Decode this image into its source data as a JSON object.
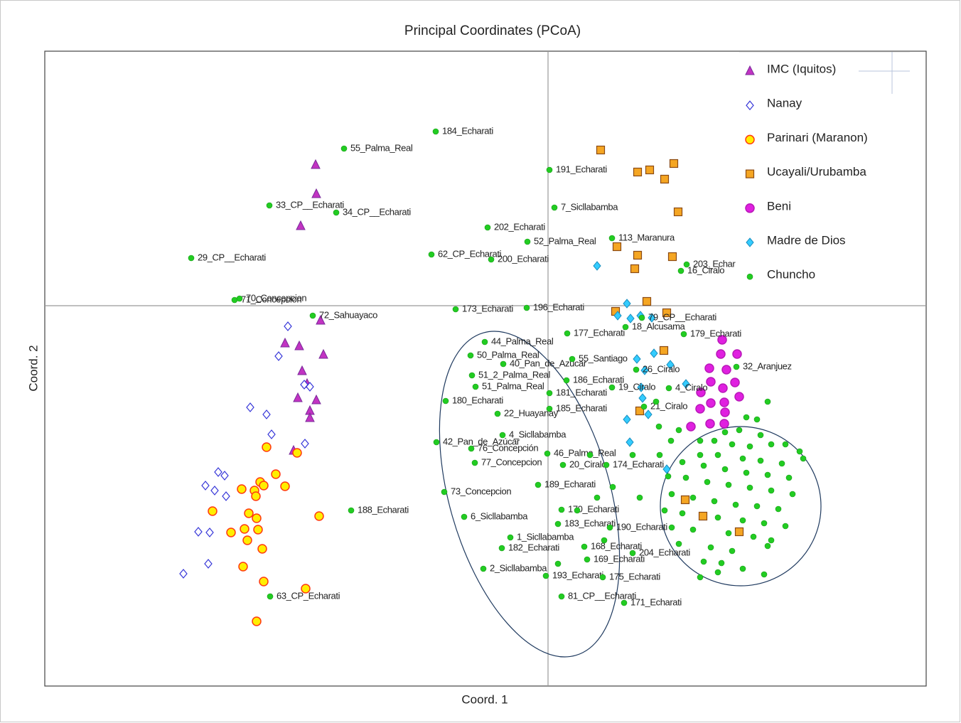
{
  "chart_data": {
    "type": "scatter",
    "title": "Principal Coordinates (PCoA)",
    "xlabel": "Coord. 1",
    "ylabel": "Coord. 2",
    "xlim": [
      -708,
      532
    ],
    "ylim": [
      -535,
      358
    ],
    "legend": "upper right",
    "series": [
      {
        "name": "IMC (Iquitos)",
        "marker": "triangle",
        "color": "#c233c2",
        "edgecolor": "#7a2a9a",
        "x": [
          -327,
          -326,
          -348,
          -320,
          -370,
          -350,
          -316,
          -346,
          -339,
          -352,
          -326,
          -335,
          -335,
          -358
        ],
        "values": [
          198,
          157,
          112,
          -21,
          -53,
          -57,
          -69,
          -92,
          -110,
          -130,
          -133,
          -148,
          -158,
          -204
        ]
      },
      {
        "name": "Nanay",
        "marker": "open-diamond",
        "color": "#ffffff",
        "edgecolor": "#3535d8",
        "x": [
          -366,
          -379,
          -343,
          -335,
          -419,
          -396,
          -389,
          -342,
          -464,
          -455,
          -482,
          -469,
          -453,
          -492,
          -476,
          -478,
          -513
        ],
        "values": [
          -29,
          -71,
          -111,
          -114,
          -143,
          -153,
          -181,
          -194,
          -234,
          -239,
          -253,
          -260,
          -268,
          -318,
          -319,
          -363,
          -377
        ]
      },
      {
        "name": "Parinari  (Maranon)",
        "marker": "circle",
        "color": "#ffee00",
        "edgecolor": "#ff3a10",
        "x": [
          -396,
          -353,
          -383,
          -405,
          -400,
          -431,
          -370,
          -413,
          -411,
          -472,
          -421,
          -322,
          -410,
          -446,
          -427,
          -408,
          -423,
          -402,
          -429,
          -400,
          -341,
          -410
        ],
        "values": [
          -199,
          -207,
          -237,
          -248,
          -253,
          -258,
          -254,
          -260,
          -268,
          -289,
          -292,
          -296,
          -299,
          -319,
          -314,
          -315,
          -330,
          -342,
          -367,
          -388,
          -398,
          -444
        ]
      },
      {
        "name": "Ucayali/Urubamba",
        "marker": "square",
        "color": "#f5a623",
        "edgecolor": "#8b4a13",
        "x": [
          74,
          126,
          143,
          177,
          164,
          183,
          97,
          126,
          175,
          122,
          139,
          95,
          167,
          163,
          129,
          193,
          218,
          269
        ],
        "values": [
          219,
          188,
          191,
          200,
          178,
          132,
          83,
          71,
          69,
          52,
          6,
          -8,
          -10,
          -63,
          -148,
          -273,
          -296,
          -318
        ]
      },
      {
        "name": "Beni",
        "marker": "circle",
        "color": "#e020e0",
        "edgecolor": "#b818b8",
        "x": [
          245,
          266,
          243,
          227,
          251,
          229,
          263,
          246,
          215,
          269,
          229,
          248,
          214,
          249,
          201,
          228,
          248
        ],
        "values": [
          -48,
          -68,
          -68,
          -88,
          -90,
          -107,
          -108,
          -116,
          -122,
          -128,
          -137,
          -136,
          -145,
          -150,
          -170,
          -166,
          -166
        ]
      },
      {
        "name": "Madre de Dios",
        "marker": "diamond",
        "color": "#33ccff",
        "edgecolor": "#1a8fc0",
        "x": [
          69,
          111,
          98,
          116,
          130,
          146,
          125,
          149,
          172,
          136,
          194,
          131,
          133,
          141,
          111,
          115,
          167
        ],
        "values": [
          56,
          3,
          -14,
          -18,
          -14,
          -17,
          -75,
          -67,
          -83,
          -91,
          -110,
          -115,
          -130,
          -153,
          -160,
          -192,
          -230
        ]
      },
      {
        "name": "Chuncho",
        "marker": "dot",
        "color": "#22cc22",
        "edgecolor": "#1a9a1a",
        "x": [
          -158,
          -287,
          2,
          -392,
          -298,
          9,
          -85,
          -29,
          90,
          -502,
          -164,
          -80,
          195,
          187,
          -441,
          -434,
          -331,
          -130,
          -30,
          132,
          27,
          109,
          191,
          -89,
          -109,
          -63,
          34,
          265,
          -107,
          26,
          124,
          -102,
          2,
          90,
          170,
          -144,
          2,
          135,
          -71,
          -157,
          -64,
          -108,
          -1,
          -103,
          21,
          82,
          -14,
          -146,
          -277,
          19,
          -118,
          14,
          87,
          -53,
          -65,
          51,
          119,
          55,
          -91,
          -3,
          77,
          -391,
          107,
          19,
          249,
          269,
          299,
          234,
          259,
          284,
          314,
          354,
          214,
          239,
          274,
          299,
          329,
          359,
          189,
          219,
          249,
          279,
          309,
          339,
          169,
          194,
          224,
          254,
          284,
          314,
          344,
          174,
          204,
          234,
          264,
          294,
          324,
          164,
          189,
          239,
          274,
          304,
          334,
          174,
          204,
          254,
          289,
          314,
          184,
          229,
          259,
          309,
          219,
          244,
          274,
          304,
          214,
          239,
          334,
          294,
          309,
          279,
          156,
          173,
          157,
          184,
          214,
          59,
          69,
          129,
          79,
          14,
          41,
          91,
          119,
          152
        ],
        "values": [
          245,
          221,
          191,
          141,
          131,
          138,
          110,
          90,
          95,
          67,
          72,
          65,
          58,
          49,
          8,
          10,
          -14,
          -5,
          -3,
          -17,
          -39,
          -30,
          -40,
          -51,
          -70,
          -82,
          -75,
          -86,
          -98,
          -105,
          -90,
          -114,
          -123,
          -115,
          -116,
          -134,
          -145,
          -142,
          -152,
          -192,
          -182,
          -201,
          -208,
          -221,
          -224,
          -224,
          -252,
          -262,
          -288,
          -287,
          -297,
          -307,
          -312,
          -326,
          -341,
          -339,
          -348,
          -357,
          -370,
          -380,
          -382,
          -409,
          -418,
          -409,
          -178,
          -175,
          -182,
          -190,
          -195,
          -198,
          -195,
          -205,
          -210,
          -210,
          -215,
          -218,
          -222,
          -215,
          -220,
          -225,
          -230,
          -235,
          -238,
          -242,
          -240,
          -242,
          -248,
          -252,
          -256,
          -260,
          -265,
          -265,
          -270,
          -275,
          -280,
          -282,
          -286,
          -288,
          -292,
          -298,
          -302,
          -306,
          -310,
          -312,
          -315,
          -320,
          -325,
          -330,
          -335,
          -340,
          -345,
          -338,
          -360,
          -362,
          -370,
          -378,
          -382,
          -375,
          -195,
          -160,
          -135,
          -157,
          -170,
          -190,
          -210,
          -175,
          -190,
          -210,
          -270,
          -270,
          -330,
          -363,
          -288,
          -255,
          -210,
          -135
        ],
        "labels": [
          "184_Echarati",
          "55_Palma_Real",
          "191_Echarati",
          "33_CP__Echarati",
          "34_CP__Echarati",
          "7_Sicllabamba",
          "202_Echarati",
          "52_Palma_Real",
          "113_Maranura",
          "29_CP__Echarati",
          "62_CP_Echarati",
          "200_Echarati",
          "203_Echar",
          "16_Ciralo",
          "71_Concepcion",
          "70_Concepcion",
          "72_Sahuayaco",
          "173_Echarati",
          "196_Echarati",
          "79_CP__Echarati",
          "177_Echarati",
          "18_Alcusama",
          "179_Echarati",
          "44_Palma_Real",
          "50_Palma_Real",
          "40_Pan_de_Azúcar",
          "55_Santiago",
          "32_Aranjuez",
          "51_2_Palma_Real",
          "186_Echarati",
          "26_Ciralo",
          "51_Palma_Real",
          "181_Echarati",
          "19_Ciralo",
          "4_Ciralo",
          "180_Echarati",
          "185_Echarati",
          "21_Ciralo",
          "22_Huayanay",
          "42_Pan_de_Azúcar",
          "4_Sicllabamba",
          "76_Concepción",
          "46_Palma_Real",
          "77_Concepcion",
          "20_Ciralo",
          "174_Echarati",
          "189_Echarati",
          "73_Concepcion",
          "188_Echarati",
          "170_Echarati",
          "6_Sicllabamba",
          "183_Echarati",
          "190_Echarati",
          "1_Sicllabamba",
          "182_Echarati",
          "168_Echarati",
          "204_Echarati",
          "169_Echarati",
          "2_Sicllabamba",
          "193_Echarati",
          "175_Echarati",
          "63_CP_Echarati",
          "171_Echarati",
          "81_CP__Echarati",
          null,
          null,
          null,
          null,
          null,
          null,
          null,
          null,
          null,
          null,
          null,
          null,
          null,
          null,
          null,
          null,
          null,
          null,
          null,
          null,
          null,
          null,
          null,
          null,
          null,
          null,
          null,
          null,
          null,
          null,
          null,
          null,
          null,
          null,
          null,
          null,
          null,
          null,
          null,
          null,
          null,
          null,
          null,
          null,
          null,
          null,
          null,
          null,
          null,
          null,
          null,
          null,
          null,
          null,
          null,
          null,
          null,
          null,
          null,
          null,
          null,
          null,
          null,
          null,
          null,
          null,
          null,
          null,
          null,
          null,
          null,
          null
        ]
      }
    ]
  }
}
